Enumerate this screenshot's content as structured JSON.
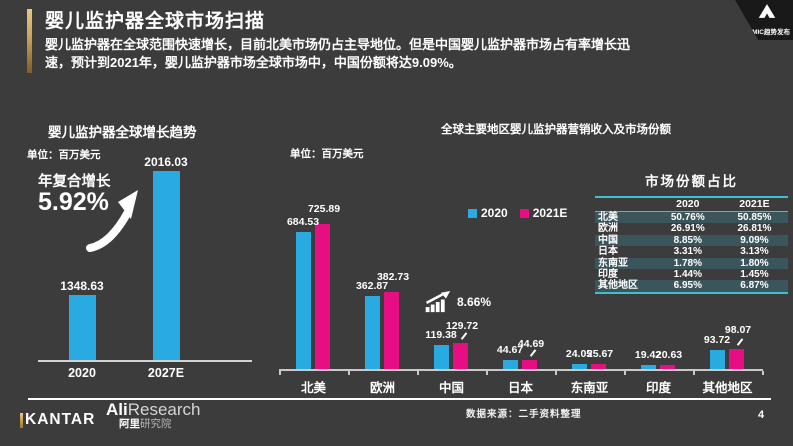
{
  "page": {
    "title": "婴儿监护器全球市场扫描",
    "subtitle": "婴儿监护器在全球范围快速增长，目前北美市场仍占主导地位。但是中国婴儿监护器市场占有率增长迅速，预计到2021年，婴儿监护器市场全球市场中，中国份额将达9.09%。",
    "source_note": "数据来源：二手资料整理",
    "page_number": "4"
  },
  "brand": {
    "tmic_label": "TMIC趋势发布",
    "kantar_label": "KANTAR",
    "ali_en_bold": "Ali",
    "ali_en_light": "Research",
    "ali_cn_bold": "阿里",
    "ali_cn_light": "研究院"
  },
  "colors": {
    "background": "#3C3C3C",
    "accent_gold": "#C9A15B",
    "bar_blue": "#29ABE2",
    "bar_pink": "#E60E82",
    "table_row_teal": "#3A565C",
    "table_border_cyan": "#41BFCF"
  },
  "chart_data": [
    {
      "id": "global_growth_trend",
      "type": "bar",
      "title": "婴儿监护器全球增长趋势",
      "unit_label": "单位：百万美元",
      "categories": [
        "2020",
        "2027E"
      ],
      "values": [
        1348.63,
        2016.03
      ],
      "bar_color": "#29ABE2",
      "annotation": {
        "label": "年复合增长",
        "value": "5.92%",
        "icon": "growth-arrow-icon"
      },
      "grid": "off",
      "value_axis_labels": "none"
    },
    {
      "id": "regional_revenue_and_share",
      "type": "bar",
      "title": "全球主要地区婴儿监护器营销收入及市场份额",
      "unit_label": "单位：百万美元",
      "categories": [
        "北美",
        "欧洲",
        "中国",
        "日本",
        "东南亚",
        "印度",
        "其他地区"
      ],
      "series": [
        {
          "name": "2020",
          "color": "#29ABE2",
          "values": [
            684.53,
            362.87,
            119.38,
            44.67,
            24.05,
            19.42,
            93.72
          ]
        },
        {
          "name": "2021E",
          "color": "#E60E82",
          "values": [
            725.89,
            382.73,
            129.72,
            44.69,
            25.67,
            20.63,
            98.07
          ]
        }
      ],
      "annotation": {
        "value": "8.66%",
        "target_category": "中国",
        "icon": "growth-trend-icon"
      },
      "legend_position": "top-right",
      "grid": "off",
      "value_axis_labels": "none"
    },
    {
      "id": "market_share_table",
      "type": "table",
      "title": "市场份额占比",
      "columns": [
        "",
        "2020",
        "2021E"
      ],
      "rows": [
        [
          "北美",
          "50.76%",
          "50.85%"
        ],
        [
          "欧洲",
          "26.91%",
          "26.81%"
        ],
        [
          "中国",
          "8.85%",
          "9.09%"
        ],
        [
          "日本",
          "3.31%",
          "3.13%"
        ],
        [
          "东南亚",
          "1.78%",
          "1.80%"
        ],
        [
          "印度",
          "1.44%",
          "1.45%"
        ],
        [
          "其他地区",
          "6.95%",
          "6.87%"
        ]
      ]
    }
  ]
}
